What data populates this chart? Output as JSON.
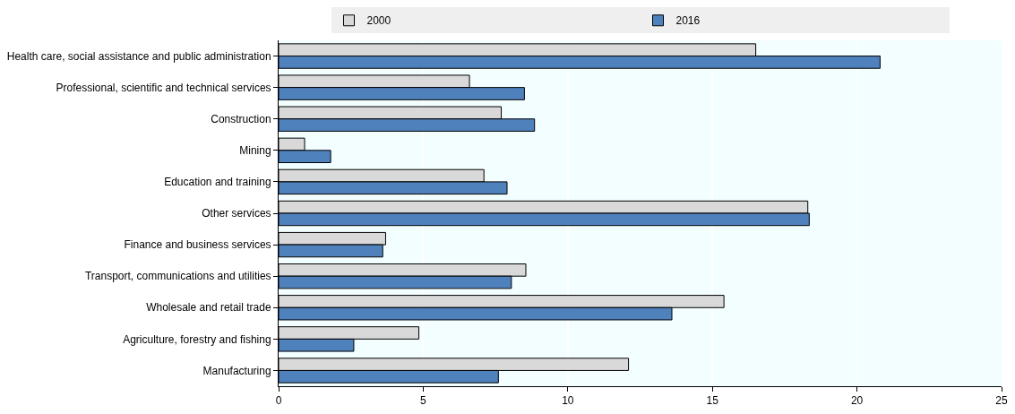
{
  "chart_data": {
    "type": "bar",
    "orientation": "horizontal",
    "categories": [
      "Health care, social assistance and public administration",
      "Professional, scientific and technical services",
      "Construction",
      "Mining",
      "Education and training",
      "Other services",
      "Finance and business services",
      "Transport, communications and utilities",
      "Wholesale and retail trade",
      "Agriculture, forestry and fishing",
      "Manufacturing"
    ],
    "series": [
      {
        "name": "2000",
        "color": "#d9d9d9",
        "values": [
          16.5,
          6.6,
          7.7,
          0.9,
          7.1,
          18.3,
          3.7,
          8.55,
          15.4,
          4.85,
          12.1
        ]
      },
      {
        "name": "2016",
        "color": "#4f81bd",
        "values": [
          20.8,
          8.5,
          8.85,
          1.8,
          7.9,
          18.35,
          3.6,
          8.05,
          13.6,
          2.6,
          7.6
        ]
      }
    ],
    "xlim": [
      0,
      25
    ],
    "xticks": [
      0,
      5,
      10,
      15,
      20,
      25
    ],
    "grid": "x",
    "legend": "top"
  }
}
